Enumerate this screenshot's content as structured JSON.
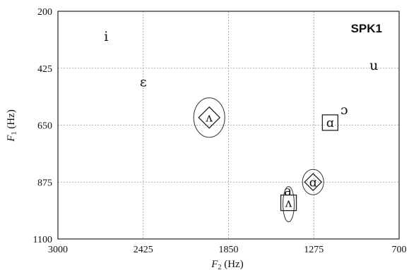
{
  "chart_data": {
    "type": "scatter",
    "title": "SPK1",
    "xlabel": "F2 (Hz)",
    "ylabel": "F1 (Hz)",
    "xlim": [
      3000,
      700
    ],
    "ylim": [
      200,
      1100
    ],
    "x_reversed": true,
    "y_reversed": true,
    "x_ticks": [
      3000,
      2425,
      1850,
      1275,
      700
    ],
    "y_ticks": [
      200,
      425,
      650,
      875,
      1100
    ],
    "grid": true,
    "points": [
      {
        "label": "i",
        "x": 2675,
        "y": 300
      },
      {
        "label": "ε",
        "x": 2425,
        "y": 480
      },
      {
        "label": "u",
        "x": 870,
        "y": 415
      },
      {
        "label": "ɔ",
        "x": 1070,
        "y": 590
      },
      {
        "label": "ʌ",
        "x": 1980,
        "y": 620,
        "marker": "diamond-in-ellipse"
      },
      {
        "label": "ɑ",
        "x": 1165,
        "y": 640,
        "marker": "square"
      },
      {
        "label": "a",
        "x": 1450,
        "y": 910
      },
      {
        "label": "ɑ",
        "x": 1280,
        "y": 875,
        "marker": "diamond-in-ellipse"
      },
      {
        "label": "ʌ",
        "x": 1445,
        "y": 957,
        "marker": "square-in-ellipse"
      }
    ]
  }
}
